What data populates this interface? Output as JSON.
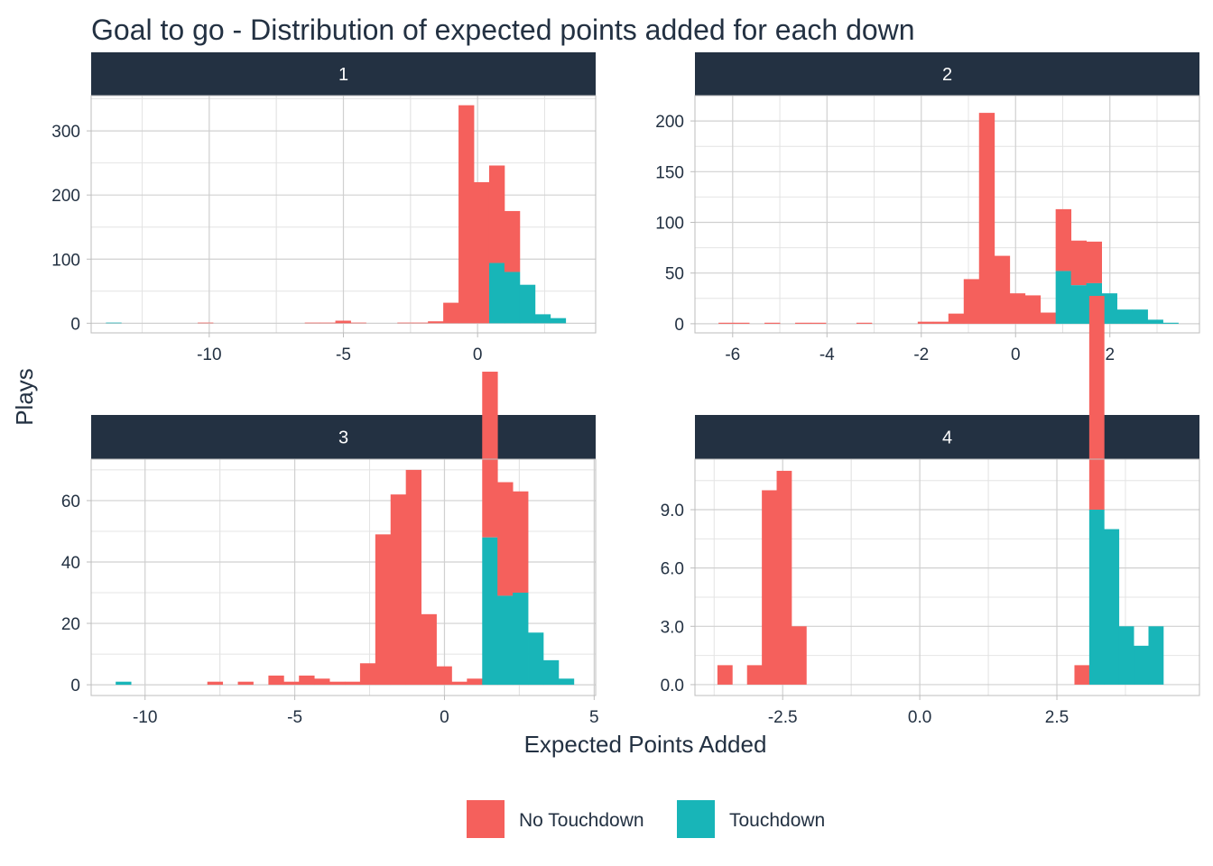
{
  "colors": {
    "no_touchdown": "#F5605C",
    "touchdown": "#18B5B8",
    "strip": "#233142",
    "grid": "#D0D0D0",
    "text": "#233142"
  },
  "chart_data": {
    "type": "bar",
    "subtype": "stacked-histogram-facets",
    "title": "Goal to go - Distribution of expected points added for each down",
    "xlabel": "Expected Points Added",
    "ylabel": "Plays",
    "legend": {
      "position": "bottom",
      "entries": [
        "No Touchdown",
        "Touchdown"
      ]
    },
    "series_names": [
      "No Touchdown",
      "Touchdown"
    ],
    "grid": true,
    "facets": [
      {
        "label": "1",
        "xlim": [
          -14.4,
          4.4
        ],
        "ylim": [
          -15,
          355
        ],
        "xticks": [
          -10,
          -5,
          0
        ],
        "xtick_labels": [
          "-10",
          "-5",
          "0"
        ],
        "yticks": [
          0,
          100,
          200,
          300
        ],
        "ytick_labels": [
          "0",
          "100",
          "200",
          "300"
        ],
        "bin_width": 0.57,
        "bins_start": [
          -13.85,
          -10.43,
          -6.44,
          -5.87,
          -5.3,
          -4.73,
          -2.99,
          -2.42,
          -1.85,
          -1.28,
          -0.71,
          -0.14,
          0.43,
          1.0,
          1.57,
          2.14,
          2.71
        ],
        "no_touchdown": [
          0,
          1,
          1,
          1,
          4,
          1,
          1,
          1,
          3,
          32,
          340,
          220,
          152,
          95,
          0,
          0,
          0
        ],
        "touchdown": [
          1,
          0,
          0,
          0,
          0,
          0,
          0,
          0,
          0,
          0,
          0,
          0,
          94,
          80,
          60,
          14,
          8
        ]
      },
      {
        "label": "2",
        "xlim": [
          -6.8,
          3.9
        ],
        "ylim": [
          -9,
          225
        ],
        "xticks": [
          -6,
          -4,
          -2,
          0,
          2
        ],
        "xtick_labels": [
          "-6",
          "-4",
          "-2",
          "0",
          "2"
        ],
        "yticks": [
          0,
          50,
          100,
          150,
          200
        ],
        "ytick_labels": [
          "0",
          "50",
          "100",
          "150",
          "200"
        ],
        "bin_width": 0.325,
        "bins_start": [
          -6.3,
          -5.975,
          -5.325,
          -4.675,
          -4.35,
          -3.375,
          -2.075,
          -1.75,
          -1.425,
          -1.1,
          -0.775,
          -0.45,
          -0.125,
          0.2,
          0.525,
          0.85,
          1.175,
          1.5,
          1.825,
          2.15,
          2.475,
          2.8,
          3.125
        ],
        "no_touchdown": [
          1,
          1,
          1,
          1,
          1,
          1,
          2,
          2,
          10,
          44,
          208,
          67,
          30,
          28,
          11,
          61,
          44,
          41,
          0,
          0,
          0,
          0,
          0
        ],
        "touchdown": [
          0,
          0,
          0,
          0,
          0,
          0,
          0,
          0,
          0,
          0,
          0,
          0,
          0,
          0,
          0,
          52,
          38,
          40,
          30,
          14,
          14,
          4,
          1
        ]
      },
      {
        "label": "3",
        "xlim": [
          -11.8,
          5.05
        ],
        "ylim": [
          -3.5,
          73.5
        ],
        "xticks": [
          -10,
          -5,
          0,
          5
        ],
        "xtick_labels": [
          "-10",
          "-5",
          "0",
          "5"
        ],
        "yticks": [
          0,
          20,
          40,
          60
        ],
        "ytick_labels": [
          "0",
          "20",
          "40",
          "60"
        ],
        "bin_width": 0.51,
        "bins_start": [
          -10.98,
          -7.92,
          -6.9,
          -5.88,
          -5.37,
          -4.86,
          -4.35,
          -3.84,
          -3.33,
          -2.82,
          -2.31,
          -1.8,
          -1.29,
          -0.78,
          -0.27,
          0.24,
          0.75,
          1.26,
          1.77,
          2.28,
          2.79,
          3.3,
          3.81
        ],
        "no_touchdown": [
          0,
          1,
          1,
          3,
          1,
          3,
          2,
          1,
          1,
          7,
          49,
          62,
          70,
          23,
          6,
          1,
          2,
          54,
          37,
          33,
          0,
          0,
          0
        ],
        "touchdown": [
          1,
          0,
          0,
          0,
          0,
          0,
          0,
          0,
          0,
          0,
          0,
          0,
          0,
          0,
          0,
          0,
          0,
          48,
          29,
          30,
          17,
          8,
          2
        ]
      },
      {
        "label": "4",
        "xlim": [
          -4.1,
          5.1
        ],
        "ylim": [
          -0.56,
          11.6
        ],
        "xticks": [
          -2.5,
          0.0,
          2.5
        ],
        "xtick_labels": [
          "-2.5",
          "0.0",
          "2.5"
        ],
        "yticks": [
          0,
          3,
          6,
          9
        ],
        "ytick_labels": [
          "0.0",
          "3.0",
          "6.0",
          "9.0"
        ],
        "bin_width": 0.27,
        "bins_start": [
          -3.69,
          -3.15,
          -2.88,
          -2.61,
          -2.34,
          2.82,
          3.09,
          3.36,
          3.63,
          3.9,
          4.17
        ],
        "no_touchdown": [
          1,
          1,
          10,
          11,
          3,
          1,
          11,
          0,
          0,
          0,
          0
        ],
        "touchdown": [
          0,
          0,
          0,
          0,
          0,
          0,
          9,
          8,
          3,
          2,
          3
        ]
      }
    ]
  }
}
